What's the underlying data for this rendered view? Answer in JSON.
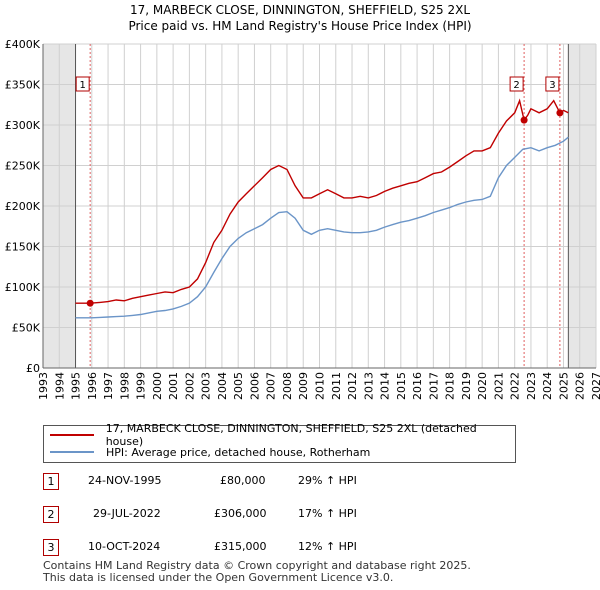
{
  "title_line1": "17, MARBECK CLOSE, DINNINGTON, SHEFFIELD, S25 2XL",
  "title_line2": "Price paid vs. HM Land Registry's House Price Index (HPI)",
  "chart_data": {
    "type": "line",
    "xlim": [
      1993,
      2027
    ],
    "ylim": [
      0,
      400000
    ],
    "x_ticks": [
      1993,
      1994,
      1995,
      1996,
      1997,
      1998,
      1999,
      2000,
      2001,
      2002,
      2003,
      2004,
      2005,
      2006,
      2007,
      2008,
      2009,
      2010,
      2011,
      2012,
      2013,
      2014,
      2015,
      2016,
      2017,
      2018,
      2019,
      2020,
      2021,
      2022,
      2023,
      2024,
      2025,
      2026,
      2027
    ],
    "y_ticks": [
      0,
      50000,
      100000,
      150000,
      200000,
      250000,
      300000,
      350000,
      400000
    ],
    "y_tick_labels": [
      "£0",
      "£50K",
      "£100K",
      "£150K",
      "£200K",
      "£250K",
      "£300K",
      "£350K",
      "£400K"
    ],
    "data_range": [
      1995.0,
      2025.3
    ],
    "series": [
      {
        "name": "17, MARBECK CLOSE, DINNINGTON, SHEFFIELD, S25 2XL (detached house)",
        "color": "#c00000",
        "x": [
          1995.0,
          1995.9,
          1996.5,
          1997.0,
          1997.5,
          1998.0,
          1998.5,
          1999.0,
          1999.5,
          2000.0,
          2000.5,
          2001.0,
          2001.5,
          2002.0,
          2002.5,
          2003.0,
          2003.5,
          2004.0,
          2004.5,
          2005.0,
          2005.5,
          2006.0,
          2006.5,
          2007.0,
          2007.5,
          2008.0,
          2008.5,
          2009.0,
          2009.5,
          2010.0,
          2010.5,
          2011.0,
          2011.5,
          2012.0,
          2012.5,
          2013.0,
          2013.5,
          2014.0,
          2014.5,
          2015.0,
          2015.5,
          2016.0,
          2016.5,
          2017.0,
          2017.5,
          2018.0,
          2018.5,
          2019.0,
          2019.5,
          2020.0,
          2020.5,
          2021.0,
          2021.5,
          2022.0,
          2022.3,
          2022.58,
          2022.8,
          2023.0,
          2023.5,
          2024.0,
          2024.4,
          2024.78,
          2025.0,
          2025.3
        ],
        "y": [
          80000,
          80000,
          81000,
          82000,
          84000,
          83000,
          86000,
          88000,
          90000,
          92000,
          94000,
          93000,
          97000,
          100000,
          110000,
          130000,
          155000,
          170000,
          190000,
          205000,
          215000,
          225000,
          235000,
          245000,
          250000,
          245000,
          225000,
          210000,
          210000,
          215000,
          220000,
          215000,
          210000,
          210000,
          212000,
          210000,
          213000,
          218000,
          222000,
          225000,
          228000,
          230000,
          235000,
          240000,
          242000,
          248000,
          255000,
          262000,
          268000,
          268000,
          272000,
          290000,
          305000,
          315000,
          330000,
          306000,
          312000,
          320000,
          315000,
          320000,
          330000,
          315000,
          318000,
          315000
        ]
      },
      {
        "name": "HPI: Average price, detached house, Rotherham",
        "color": "#6b95c8",
        "x": [
          1995.0,
          1995.5,
          1996.0,
          1996.5,
          1997.0,
          1997.5,
          1998.0,
          1998.5,
          1999.0,
          1999.5,
          2000.0,
          2000.5,
          2001.0,
          2001.5,
          2002.0,
          2002.5,
          2003.0,
          2003.5,
          2004.0,
          2004.5,
          2005.0,
          2005.5,
          2006.0,
          2006.5,
          2007.0,
          2007.5,
          2008.0,
          2008.5,
          2009.0,
          2009.5,
          2010.0,
          2010.5,
          2011.0,
          2011.5,
          2012.0,
          2012.5,
          2013.0,
          2013.5,
          2014.0,
          2014.5,
          2015.0,
          2015.5,
          2016.0,
          2016.5,
          2017.0,
          2017.5,
          2018.0,
          2018.5,
          2019.0,
          2019.5,
          2020.0,
          2020.5,
          2021.0,
          2021.5,
          2022.0,
          2022.5,
          2023.0,
          2023.5,
          2024.0,
          2024.5,
          2025.0,
          2025.3
        ],
        "y": [
          62000,
          62000,
          62000,
          62500,
          63000,
          63500,
          64000,
          65000,
          66000,
          68000,
          70000,
          71000,
          73000,
          76000,
          80000,
          88000,
          100000,
          118000,
          135000,
          150000,
          160000,
          167000,
          172000,
          177000,
          185000,
          192000,
          193000,
          185000,
          170000,
          165000,
          170000,
          172000,
          170000,
          168000,
          167000,
          167000,
          168000,
          170000,
          174000,
          177000,
          180000,
          182000,
          185000,
          188000,
          192000,
          195000,
          198000,
          202000,
          205000,
          207000,
          208000,
          212000,
          235000,
          250000,
          260000,
          270000,
          272000,
          268000,
          272000,
          275000,
          280000,
          285000
        ]
      }
    ],
    "sales": [
      {
        "label": "1",
        "x": 1995.9,
        "y": 80000
      },
      {
        "label": "2",
        "x": 2022.58,
        "y": 306000
      },
      {
        "label": "3",
        "x": 2024.78,
        "y": 315000
      }
    ]
  },
  "legend": {
    "red_label": "17, MARBECK CLOSE, DINNINGTON, SHEFFIELD, S25 2XL (detached house)",
    "blue_label": "HPI: Average price, detached house, Rotherham"
  },
  "sales_table": [
    {
      "num": "1",
      "date": "24-NOV-1995",
      "price": "£80,000",
      "hpi": "29% ↑ HPI"
    },
    {
      "num": "2",
      "date": "29-JUL-2022",
      "price": "£306,000",
      "hpi": "17% ↑ HPI"
    },
    {
      "num": "3",
      "date": "10-OCT-2024",
      "price": "£315,000",
      "hpi": "12% ↑ HPI"
    }
  ],
  "footer": {
    "line1": "Contains HM Land Registry data © Crown copyright and database right 2025.",
    "line2": "This data is licensed under the Open Government Licence v3.0."
  }
}
